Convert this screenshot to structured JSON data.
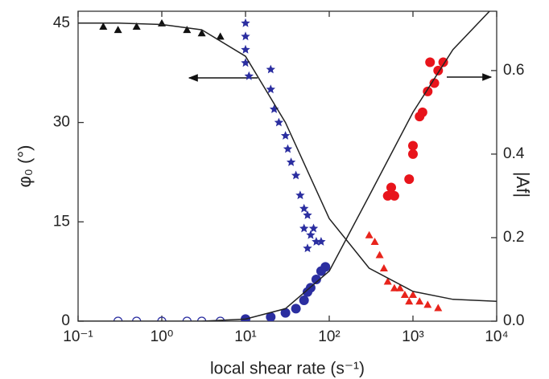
{
  "chart_data": {
    "type": "scatter",
    "xlabel": "local shear rate (s⁻¹)",
    "ylabel": "φ₀ (°)",
    "y2label": "|Af|",
    "log_x": true,
    "xlim": [
      0.1,
      10000
    ],
    "xticks": [
      {
        "value": 0.1,
        "label": "10⁻¹"
      },
      {
        "value": 1,
        "label": "10⁰"
      },
      {
        "value": 10,
        "label": "10¹"
      },
      {
        "value": 100,
        "label": "10²"
      },
      {
        "value": 1000,
        "label": "10³"
      },
      {
        "value": 10000,
        "label": "10⁴"
      }
    ],
    "ylim": [
      0,
      46.8
    ],
    "yticks": [
      0,
      15,
      30,
      45
    ],
    "y2lim": [
      0,
      0.742
    ],
    "y2ticks": [
      {
        "value": 0,
        "label": "0.0"
      },
      0.2,
      0.4,
      0.6
    ],
    "series": [
      {
        "marker": "triangle",
        "color": "#111111",
        "axis": "y",
        "x": [
          0.2,
          0.3,
          0.5,
          1,
          2,
          3,
          5
        ],
        "values": [
          44.5,
          44,
          44.5,
          45,
          44,
          43.5,
          43
        ]
      },
      {
        "marker": "star",
        "color": "#2b2ea0",
        "axis": "y",
        "x": [
          10,
          10,
          10,
          10,
          11,
          20,
          20,
          22,
          25,
          30,
          32,
          35,
          40,
          45,
          50,
          55,
          60,
          50,
          55,
          65,
          70,
          80
        ],
        "values": [
          45,
          43,
          41,
          39,
          37,
          38,
          35,
          32,
          30,
          28,
          26,
          24,
          22,
          19,
          17,
          16,
          13,
          14,
          11,
          14,
          12,
          12
        ]
      },
      {
        "marker": "triangle",
        "color": "#e8241c",
        "axis": "y",
        "x": [
          300,
          350,
          400,
          450,
          500,
          600,
          700,
          800,
          900,
          1000,
          1200,
          1500,
          2000
        ],
        "values": [
          13,
          12,
          10,
          8,
          6,
          5,
          5,
          4,
          3,
          4,
          3,
          2.5,
          2
        ]
      },
      {
        "marker": "circle",
        "color": "#2b2ea0",
        "axis": "y2",
        "x": [
          10,
          20,
          30,
          40,
          50,
          55,
          60,
          70,
          80,
          90
        ],
        "values": [
          0.005,
          0.01,
          0.02,
          0.03,
          0.05,
          0.07,
          0.08,
          0.1,
          0.12,
          0.13
        ]
      },
      {
        "marker": "open-circle",
        "color": "#2b2ea0",
        "axis": "y2",
        "x": [
          0.3,
          0.5,
          1,
          2,
          3,
          5
        ],
        "values": [
          0,
          0,
          0,
          0,
          0,
          0
        ]
      },
      {
        "marker": "circle",
        "color": "#e8141b",
        "axis": "y2",
        "x": [
          500,
          550,
          600,
          900,
          1000,
          1000,
          1200,
          1300,
          1500,
          1600,
          1800,
          2000,
          2300
        ],
        "values": [
          0.3,
          0.32,
          0.3,
          0.34,
          0.4,
          0.42,
          0.49,
          0.5,
          0.55,
          0.62,
          0.57,
          0.6,
          0.62
        ]
      },
      {
        "marker": "line",
        "color": "#222222",
        "axis": "y",
        "x": [
          0.1,
          0.3,
          1,
          3,
          10,
          30,
          100,
          300,
          1000,
          3000,
          10000
        ],
        "values": [
          45,
          45,
          44.8,
          44,
          40,
          30,
          15.5,
          8,
          4.5,
          3.3,
          3
        ]
      },
      {
        "marker": "line",
        "color": "#222222",
        "axis": "y2",
        "x": [
          0.1,
          0.3,
          1,
          3,
          10,
          30,
          100,
          300,
          1000,
          3000,
          10000
        ],
        "values": [
          0,
          0,
          0,
          0,
          0.005,
          0.03,
          0.12,
          0.3,
          0.5,
          0.65,
          0.76
        ]
      }
    ]
  }
}
